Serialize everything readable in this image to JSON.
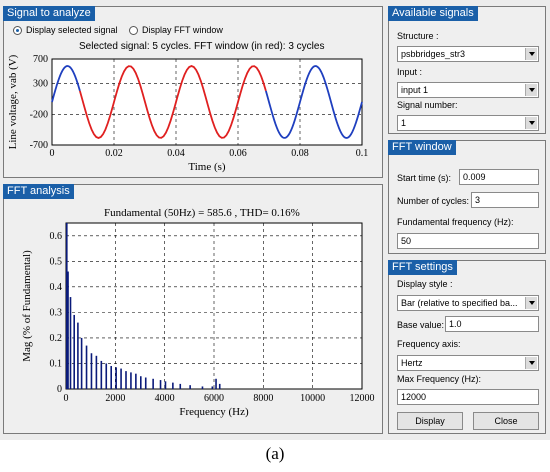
{
  "signal_panel": {
    "title": "Signal to analyze",
    "radio_selected_label": "Display selected signal",
    "radio_fft_label": "Display FFT window",
    "info": "Selected signal: 5 cycles. FFT window (in red): 3 cycles",
    "chart": {
      "ylabel": "Line voltage, vab (V)",
      "xlabel": "Time (s)",
      "y_ticks": [
        "700",
        "300",
        "-200",
        "-700"
      ],
      "x_ticks": [
        "0",
        "0.02",
        "0.04",
        "0.06",
        "0.08",
        "0.1"
      ]
    }
  },
  "fft_panel": {
    "title": "FFT analysis",
    "fundamental_text": "Fundamental (50Hz) = 585.6 , THD= 0.16%",
    "chart": {
      "ylabel": "Mag (% of Fundamental)",
      "xlabel": "Frequency (Hz)",
      "y_ticks": [
        "0.6",
        "0.5",
        "0.4",
        "0.3",
        "0.2",
        "0.1",
        "0"
      ],
      "x_ticks": [
        "0",
        "2000",
        "4000",
        "6000",
        "8000",
        "10000",
        "12000"
      ]
    }
  },
  "available_signals": {
    "title": "Available signals",
    "structure_label": "Structure :",
    "structure_value": "psbbridges_str3",
    "input_label": "Input :",
    "input_value": "input 1",
    "signal_number_label": "Signal number:",
    "signal_number_value": "1"
  },
  "fft_window": {
    "title": "FFT window",
    "start_time_label": "Start time (s):",
    "start_time_value": "0.009",
    "num_cycles_label": "Number of cycles:",
    "num_cycles_value": "3",
    "fund_freq_label": "Fundamental frequency (Hz):",
    "fund_freq_value": "50"
  },
  "fft_settings": {
    "title": "FFT settings",
    "display_style_label": "Display style :",
    "display_style_value": "Bar (relative to specified ba...",
    "base_value_label": "Base value:",
    "base_value_value": "1.0",
    "freq_axis_label": "Frequency axis:",
    "freq_axis_value": "Hertz",
    "max_freq_label": "Max Frequency (Hz):",
    "max_freq_value": "12000",
    "display_button": "Display",
    "close_button": "Close"
  },
  "caption": "(a)",
  "chart_data": [
    {
      "type": "line",
      "title": "",
      "xlabel": "Time (s)",
      "ylabel": "Line voltage, vab (V)",
      "xlim": [
        0,
        0.1
      ],
      "ylim": [
        -700,
        700
      ],
      "grid": true,
      "series": [
        {
          "color": "#1f3fbf",
          "segment": [
            0,
            0.009
          ],
          "amplitude": 585.6,
          "frequency_hz": 50
        },
        {
          "color": "#e02020",
          "segment": [
            0.009,
            0.069
          ],
          "amplitude": 585.6,
          "frequency_hz": 50
        },
        {
          "color": "#1f3fbf",
          "segment": [
            0.069,
            0.1
          ],
          "amplitude": 585.6,
          "frequency_hz": 50
        }
      ]
    },
    {
      "type": "bar",
      "title": "Fundamental (50Hz) = 585.6 , THD= 0.16%",
      "xlabel": "Frequency (Hz)",
      "ylabel": "Mag (% of Fundamental)",
      "xlim": [
        0,
        12000
      ],
      "ylim": [
        0,
        0.65
      ],
      "grid": true,
      "color": "#0a1a7a",
      "x": [
        0,
        50,
        150,
        300,
        450,
        600,
        800,
        1000,
        1200,
        1400,
        1600,
        1800,
        2000,
        2200,
        2400,
        2600,
        2800,
        3000,
        3200,
        3500,
        3800,
        4000,
        4300,
        4600,
        5000,
        5500,
        5900,
        6050,
        6200
      ],
      "values": [
        0.65,
        0.46,
        0.36,
        0.29,
        0.26,
        0.2,
        0.17,
        0.14,
        0.13,
        0.11,
        0.1,
        0.09,
        0.085,
        0.08,
        0.07,
        0.065,
        0.06,
        0.05,
        0.045,
        0.04,
        0.035,
        0.03,
        0.025,
        0.02,
        0.015,
        0.01,
        0.01,
        0.04,
        0.02
      ]
    }
  ]
}
